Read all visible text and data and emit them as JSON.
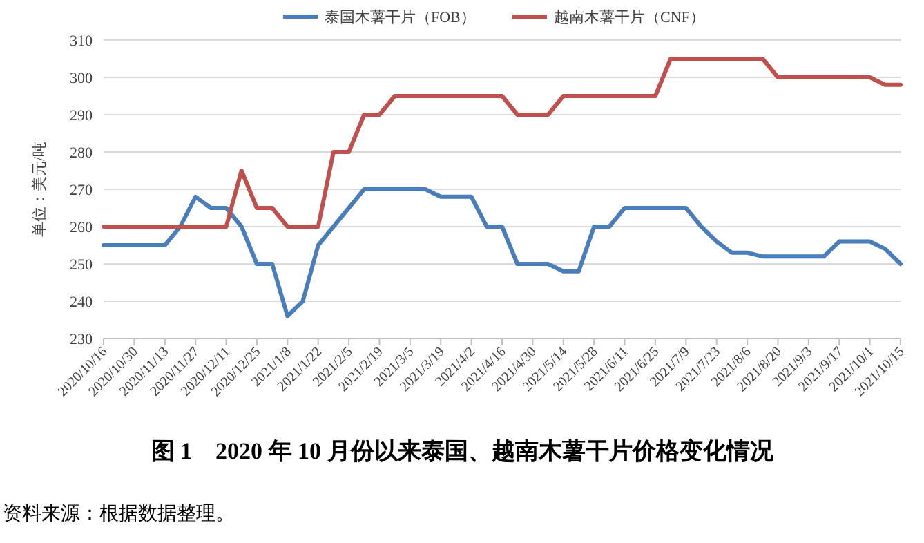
{
  "chart_data": {
    "type": "line",
    "title": "图 1　2020 年 10 月份以来泰国、越南木薯干片价格变化情况",
    "ylabel": "单位：美元/吨",
    "annotations": [
      "资料来源：根据数据整理。"
    ],
    "categories": [
      "2020/10/16",
      null,
      "2020/10/30",
      null,
      "2020/11/13",
      null,
      "2020/11/27",
      null,
      "2020/12/11",
      null,
      "2020/12/25",
      null,
      "2021/1/8",
      null,
      "2021/1/22",
      null,
      "2021/2/5",
      null,
      "2021/2/19",
      null,
      "2021/3/5",
      null,
      "2021/3/19",
      null,
      "2021/4/2",
      null,
      "2021/4/16",
      null,
      "2021/4/30",
      null,
      "2021/5/14",
      null,
      "2021/5/28",
      null,
      "2021/6/11",
      null,
      "2021/6/25",
      null,
      "2021/7/9",
      null,
      "2021/7/23",
      null,
      "2021/8/6",
      null,
      "2021/8/20",
      null,
      "2021/9/3",
      null,
      "2021/9/17",
      null,
      "2021/10/1",
      null,
      "2021/10/15"
    ],
    "series": [
      {
        "name": "泰国木薯干片（FOB）",
        "color": "#4a7ebb",
        "values": [
          255,
          255,
          255,
          255,
          255,
          260,
          268,
          265,
          265,
          260,
          250,
          250,
          236,
          240,
          255,
          260,
          265,
          270,
          270,
          270,
          270,
          270,
          268,
          268,
          268,
          260,
          260,
          250,
          250,
          250,
          248,
          248,
          260,
          260,
          265,
          265,
          265,
          265,
          265,
          260,
          256,
          253,
          253,
          252,
          252,
          252,
          252,
          252,
          256,
          256,
          256,
          254,
          250
        ]
      },
      {
        "name": "越南木薯干片（CNF）",
        "color": "#c0504d",
        "values": [
          260,
          260,
          260,
          260,
          260,
          260,
          260,
          260,
          260,
          275,
          265,
          265,
          260,
          260,
          260,
          280,
          280,
          290,
          290,
          295,
          295,
          295,
          295,
          295,
          295,
          295,
          295,
          290,
          290,
          290,
          295,
          295,
          295,
          295,
          295,
          295,
          295,
          305,
          305,
          305,
          305,
          305,
          305,
          305,
          300,
          300,
          300,
          300,
          300,
          300,
          300,
          298,
          298
        ]
      }
    ],
    "ylim": [
      230,
      310
    ],
    "yticks": [
      230,
      240,
      250,
      260,
      270,
      280,
      290,
      300,
      310
    ],
    "grid": "y",
    "legend": "top",
    "marker": "none",
    "line_style": "solid"
  }
}
